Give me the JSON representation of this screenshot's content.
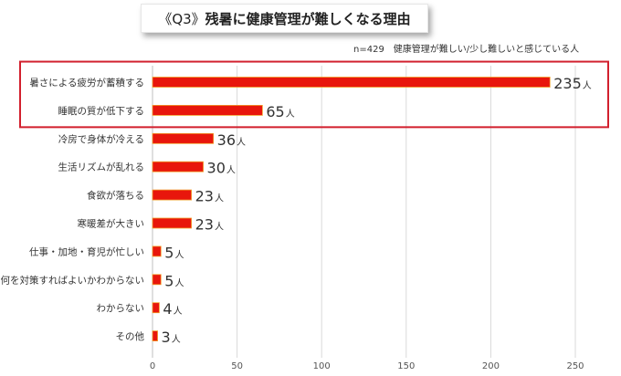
{
  "title": {
    "prefix": "《Q3》",
    "text": "残暑に健康管理が難しくなる理由"
  },
  "subtitle": "n=429　健康管理が難しい/少し難しいと感じている人",
  "colors": {
    "bar": "#e8160c",
    "bar_edge": "#f2a12c",
    "highlight_border": "#d2202e",
    "grid": "#d9d9d9"
  },
  "chart_data": {
    "type": "bar",
    "orientation": "horizontal",
    "categories": [
      "暑さによる疲労が蓄積する",
      "睡眠の質が低下する",
      "冷房で身体が冷える",
      "生活リズムが乱れる",
      "食欲が落ちる",
      "寒暖差が大きい",
      "仕事・加地・育児が忙しい",
      "何を対策すればよいかわからない",
      "わからない",
      "その他"
    ],
    "values": [
      235,
      65,
      36,
      30,
      23,
      23,
      5,
      5,
      4,
      3
    ],
    "data_labels": [
      "235",
      "65",
      "36",
      "30",
      "23",
      "23",
      "5",
      "5",
      "4",
      "3"
    ],
    "unit": "人",
    "xlim": [
      0,
      250
    ],
    "xticks": [
      "0",
      "50",
      "100",
      "150",
      "200",
      "250"
    ],
    "grid": "vertical",
    "highlighted_categories": 2
  }
}
